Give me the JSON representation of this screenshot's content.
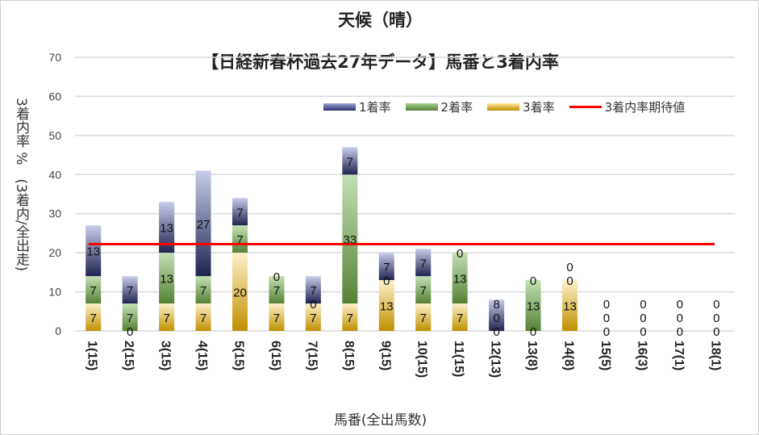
{
  "chart_data": {
    "type": "bar",
    "stacked": true,
    "title": "天候（晴）",
    "subtitle": "【日経新春杯過去27年データ】馬番と3着内率",
    "xlabel": "馬番(全出馬数)",
    "ylabel": "3着内率 %　(3着内/全出走)",
    "ylim": [
      0,
      70
    ],
    "yticks": [
      "0",
      "10",
      "20",
      "30",
      "40",
      "50",
      "60",
      "70"
    ],
    "grid": true,
    "legend_position": "top-right",
    "categories": [
      "1(15)",
      "2(15)",
      "3(15)",
      "4(15)",
      "5(15)",
      "6(15)",
      "7(15)",
      "8(15)",
      "9(15)",
      "10(15)",
      "11(15)",
      "12(13)",
      "13(8)",
      "14(8)",
      "15(5)",
      "16(3)",
      "17(1)",
      "18(1)"
    ],
    "series": [
      {
        "name": "3着率",
        "color": "#c8961a",
        "values": [
          7,
          0,
          7,
          7,
          20,
          7,
          7,
          7,
          13,
          7,
          7,
          0,
          0,
          13,
          0,
          0,
          0,
          0
        ]
      },
      {
        "name": "2着率",
        "color": "#5a8a3a",
        "values": [
          7,
          7,
          13,
          7,
          7,
          7,
          0,
          33,
          0,
          7,
          13,
          0,
          13,
          0,
          0,
          0,
          0,
          0
        ]
      },
      {
        "name": "1着率",
        "color": "#2a2f6e",
        "values": [
          13,
          7,
          13,
          27,
          7,
          0,
          7,
          7,
          7,
          7,
          0,
          8,
          0,
          0,
          0,
          0,
          0,
          0
        ]
      }
    ],
    "reference_line": {
      "name": "3着内率期待値",
      "value": 22.2,
      "color": "#ff0000"
    },
    "legend": [
      "1着率",
      "2着率",
      "3着率",
      "3着内率期待値"
    ]
  }
}
